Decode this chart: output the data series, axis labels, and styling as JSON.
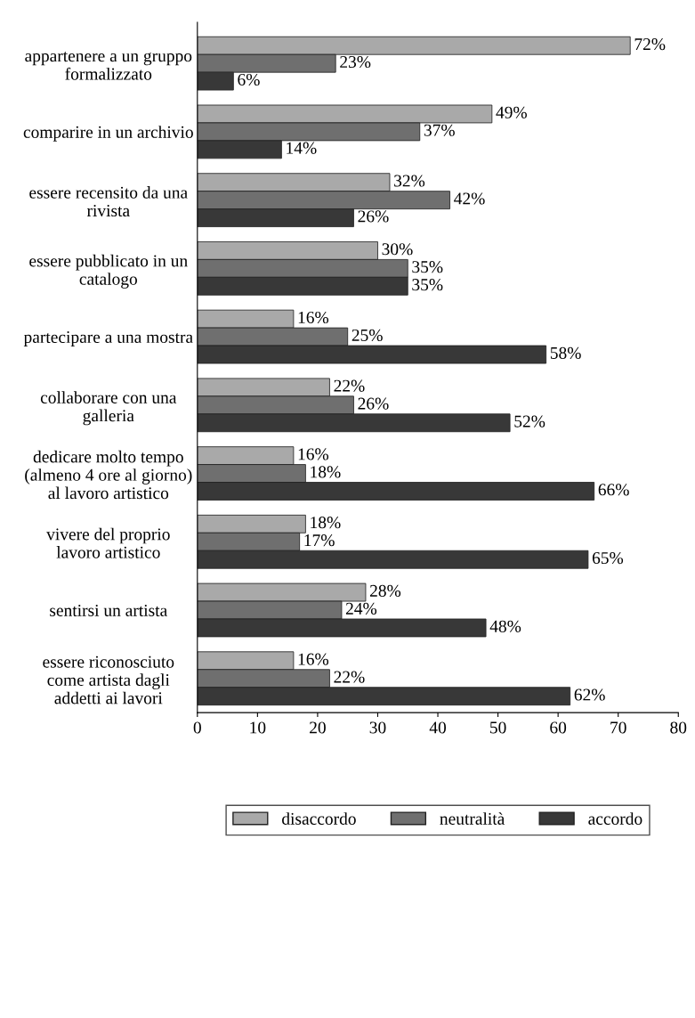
{
  "chart_data": {
    "type": "bar",
    "orientation": "horizontal",
    "categories": [
      "appartenere a un gruppo\nformalizzato",
      "comparire in un archivio",
      "essere recensito da una\nrivista",
      "essere pubblicato in un\ncatalogo",
      "partecipare a una mostra",
      "collaborare con una\ngalleria",
      "dedicare molto tempo\n(almeno 4 ore al giorno)\nal lavoro artistico",
      "vivere del proprio\nlavoro artistico",
      "sentirsi un artista",
      "essere riconosciuto\ncome artista dagli\naddetti ai lavori"
    ],
    "series": [
      {
        "name": "disaccordo",
        "color": "#a9a9a9",
        "values": [
          72,
          49,
          32,
          30,
          16,
          22,
          16,
          18,
          28,
          16
        ],
        "value_labels": [
          "72%",
          "49%",
          "32%",
          "30%",
          "16%",
          "22%",
          "16%",
          "18%",
          "28%",
          "16%"
        ]
      },
      {
        "name": "neutralità",
        "color": "#6f6f6f",
        "values": [
          23,
          37,
          42,
          35,
          25,
          26,
          18,
          17,
          24,
          22
        ],
        "value_labels": [
          "23%",
          "37%",
          "42%",
          "35%",
          "25%",
          "26%",
          "18%",
          "17%",
          "24%",
          "22%"
        ]
      },
      {
        "name": "accordo",
        "color": "#383838",
        "values": [
          6,
          14,
          26,
          35,
          58,
          52,
          66,
          65,
          48,
          62
        ],
        "value_labels": [
          "6%",
          "14%",
          "26%",
          "35%",
          "58%",
          "52%",
          "66%",
          "65%",
          "48%",
          "62%"
        ]
      }
    ],
    "xlim": [
      0,
      80
    ],
    "xticks": [
      0,
      10,
      20,
      30,
      40,
      50,
      60,
      70,
      80
    ],
    "grid": false,
    "legend": "bottom"
  }
}
